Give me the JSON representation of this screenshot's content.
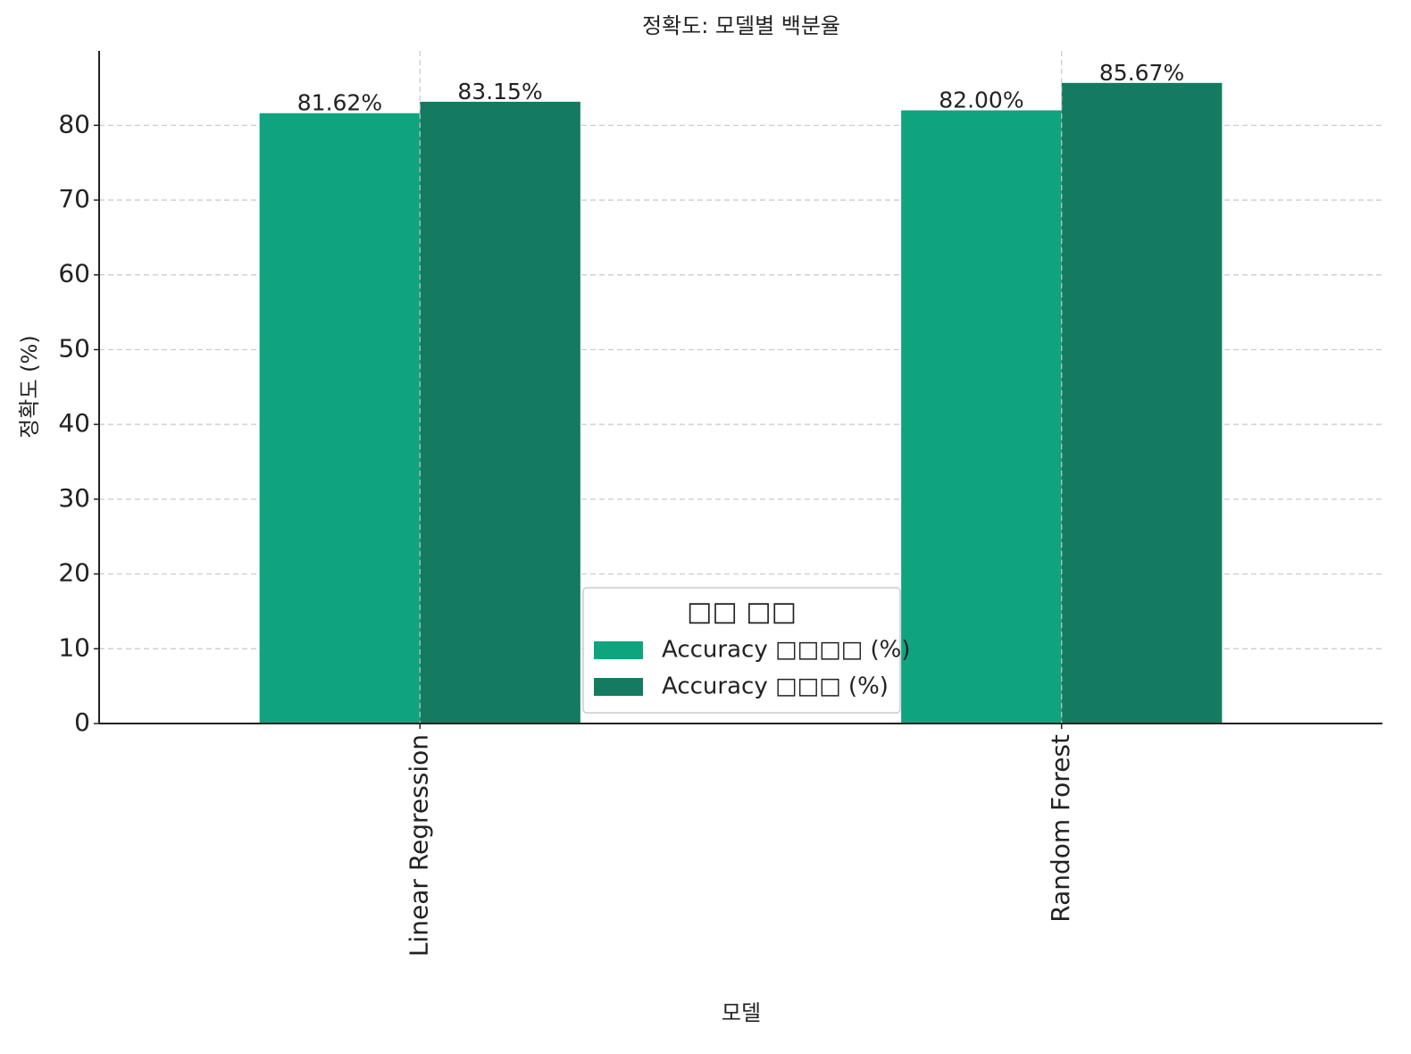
{
  "chart_data": {
    "type": "bar",
    "title": "정확도: 모델별 백분율",
    "x_label": "모델",
    "y_label": "정확도 (%)",
    "legend_title": "□□ □□",
    "legend_position": "lower center",
    "categories": [
      "Linear Regression",
      "Random Forest"
    ],
    "series": [
      {
        "name": "Accuracy □□□□ (%)",
        "color": "#10a37f",
        "values": [
          81.62,
          82.0
        ],
        "value_labels": [
          "81.62%",
          "82.00%"
        ]
      },
      {
        "name": "Accuracy □□□ (%)",
        "color": "#147b60",
        "values": [
          83.15,
          85.67
        ],
        "value_labels": [
          "83.15%",
          "85.67%"
        ]
      }
    ],
    "ylim": [
      0,
      89.95
    ],
    "yticks": [
      0,
      10,
      20,
      30,
      40,
      50,
      60,
      70,
      80
    ],
    "grid": true
  }
}
